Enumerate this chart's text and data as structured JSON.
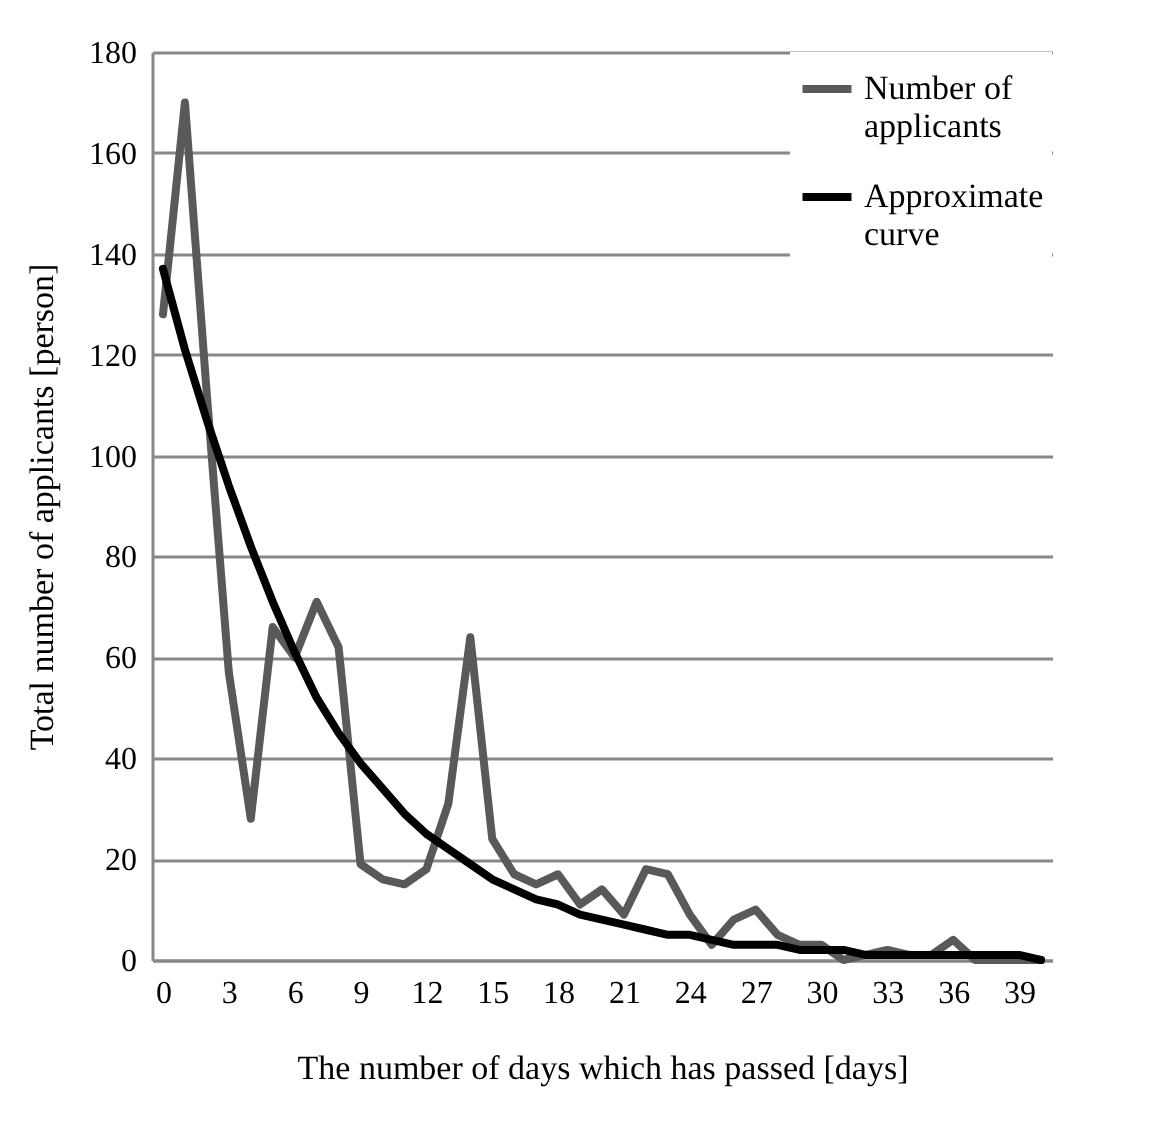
{
  "chart_data": {
    "type": "line",
    "xlabel": "The number of days which has passed [days]",
    "ylabel": "Total number of applicants [person]",
    "x": [
      0,
      1,
      2,
      3,
      4,
      5,
      6,
      7,
      8,
      9,
      10,
      11,
      12,
      13,
      14,
      15,
      16,
      17,
      18,
      19,
      20,
      21,
      22,
      23,
      24,
      25,
      26,
      27,
      28,
      29,
      30,
      31,
      32,
      33,
      34,
      35,
      36,
      37,
      38,
      39,
      40
    ],
    "series": [
      {
        "name": "Number of applicants",
        "color": "#595959",
        "values": [
          128,
          170,
          112,
          57,
          28,
          66,
          60,
          71,
          62,
          19,
          16,
          15,
          18,
          31,
          64,
          24,
          17,
          15,
          17,
          11,
          14,
          9,
          18,
          17,
          9,
          3,
          8,
          10,
          5,
          3,
          3,
          0,
          1,
          2,
          1,
          1,
          4,
          0,
          0,
          0,
          0
        ]
      },
      {
        "name": "Approximate curve",
        "color": "#000000",
        "values": [
          137,
          121,
          107,
          94,
          82,
          71,
          61,
          52,
          45,
          39,
          34,
          29,
          25,
          22,
          19,
          16,
          14,
          12,
          11,
          9,
          8,
          7,
          6,
          5,
          5,
          4,
          3,
          3,
          3,
          2,
          2,
          2,
          1,
          1,
          1,
          1,
          1,
          1,
          1,
          1,
          0
        ]
      }
    ],
    "xlim": [
      -0.5,
      40.5
    ],
    "xticks": [
      0,
      3,
      6,
      9,
      12,
      15,
      18,
      21,
      24,
      27,
      30,
      33,
      36,
      39
    ],
    "ylim": [
      0,
      180
    ],
    "yticks": [
      0,
      20,
      40,
      60,
      80,
      100,
      120,
      140,
      160,
      180
    ],
    "grid": "y",
    "legend": "top right"
  }
}
